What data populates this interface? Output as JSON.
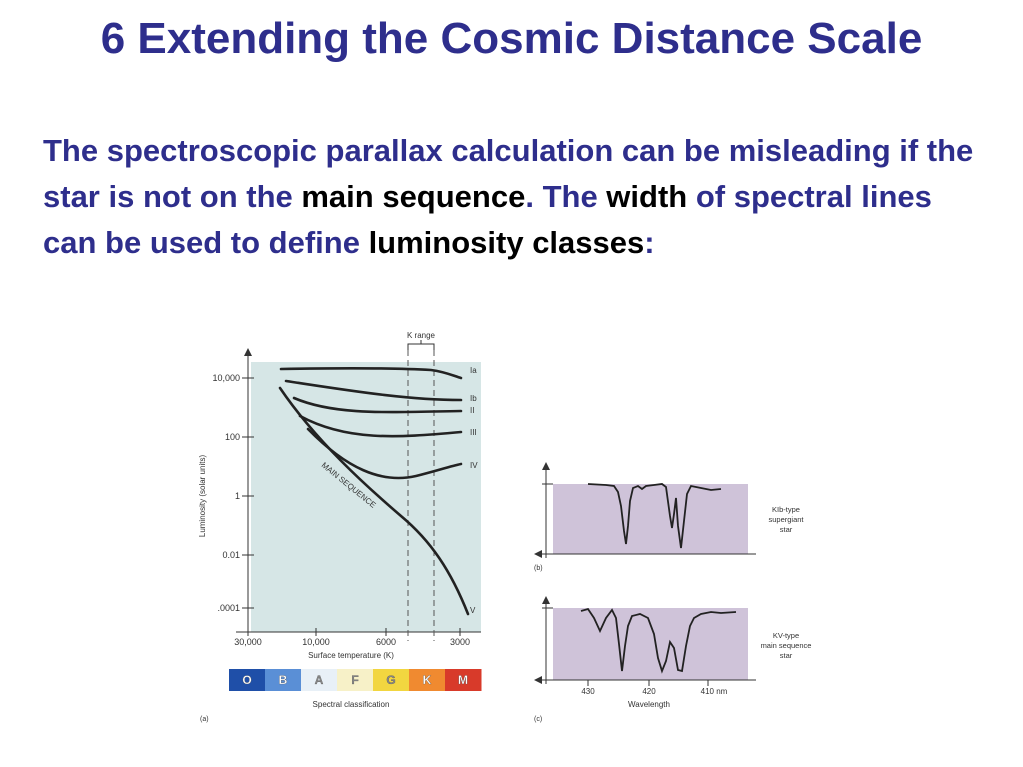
{
  "title": "6 Extending the Cosmic Distance Scale",
  "paragraph": [
    {
      "text": "The spectroscopic parallax calculation can be misleading if the star is not on the ",
      "emph": false
    },
    {
      "text": "main sequence",
      "emph": true
    },
    {
      "text": ". The ",
      "emph": false
    },
    {
      "text": "width",
      "emph": true
    },
    {
      "text": " of spectral lines can be used to define ",
      "emph": false
    },
    {
      "text": "luminosity classes",
      "emph": true
    },
    {
      "text": ":",
      "emph": false
    }
  ],
  "figure": {
    "panel_a": {
      "label": "(a)",
      "k_range_label": "K range",
      "y_axis_label": "Luminosity (solar units)",
      "y_ticks": [
        "10,000",
        "100",
        "1",
        "0.01",
        ".0001"
      ],
      "x_ticks": [
        "30,000",
        "10,000",
        "6000",
        "3000"
      ],
      "x_axis_label": "Surface temperature (K)",
      "main_sequence_label": "MAIN SEQUENCE",
      "class_labels": [
        "Ia",
        "Ib",
        "II",
        "III",
        "IV",
        "V"
      ],
      "spectral_classes": [
        "O",
        "B",
        "A",
        "F",
        "G",
        "K",
        "M"
      ],
      "spectral_colors": [
        "#1f4fa8",
        "#5a8fd6",
        "#e8f0f7",
        "#f7f1c8",
        "#f2d640",
        "#f08a30",
        "#d83a2a"
      ],
      "spectral_label": "Spectral classification"
    },
    "panel_b": {
      "label": "(b)",
      "star_label": [
        "KIb-type",
        "supergiant",
        "star"
      ]
    },
    "panel_c": {
      "label": "(c)",
      "star_label": [
        "KV-type",
        "main sequence",
        "star"
      ],
      "x_ticks": [
        "430",
        "420",
        "410 nm"
      ],
      "x_axis_label": "Wavelength"
    },
    "colors": {
      "chart_bg": "#d6e6e6",
      "spectrum_bg": "#cfc3d9",
      "title_blue": "#2e2e8c"
    }
  }
}
